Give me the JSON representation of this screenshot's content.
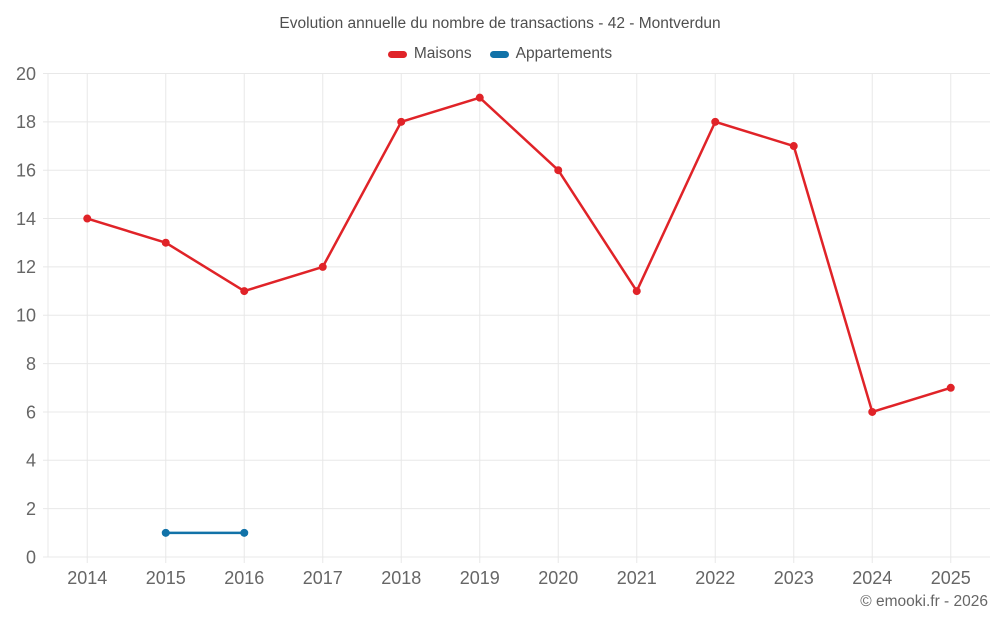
{
  "title": "Evolution annuelle du nombre de transactions - 42 - Montverdun",
  "legend": {
    "items": [
      {
        "label": "Maisons",
        "color": "#e02328"
      },
      {
        "label": "Appartements",
        "color": "#1172a8"
      }
    ]
  },
  "copyright": "© emooki.fr - 2026",
  "style": {
    "grid_color": "#e8e8e8",
    "tick_label_color": "#666666",
    "title_color": "#4f4f4f",
    "background": "#ffffff"
  },
  "chart_data": {
    "type": "line",
    "title": "Evolution annuelle du nombre de transactions - 42 - Montverdun",
    "x": [
      2014,
      2015,
      2016,
      2017,
      2018,
      2019,
      2020,
      2021,
      2022,
      2023,
      2024,
      2025
    ],
    "series": [
      {
        "name": "Maisons",
        "color": "#e02328",
        "values": [
          14,
          13,
          11,
          12,
          18,
          19,
          16,
          11,
          18,
          17,
          6,
          7
        ]
      },
      {
        "name": "Appartements",
        "color": "#1172a8",
        "values": [
          null,
          1,
          1,
          null,
          null,
          null,
          null,
          null,
          null,
          null,
          null,
          null
        ]
      }
    ],
    "xlabel": "",
    "ylabel": "",
    "ylim": [
      0,
      20
    ],
    "ytick_step": 2,
    "grid": true,
    "legend_position": "top"
  }
}
